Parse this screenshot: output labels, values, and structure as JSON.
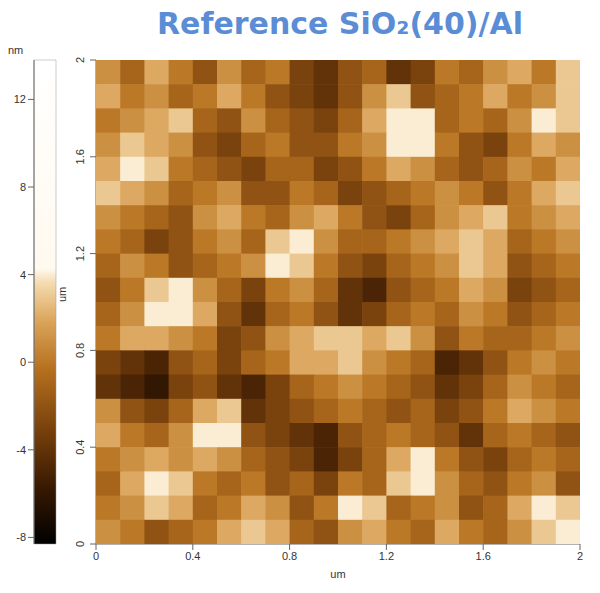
{
  "chart_data": {
    "type": "heatmap",
    "title": "Reference SiO₂(40)/Al",
    "x_label": "um",
    "y_label": "um",
    "x": [
      0.05,
      0.15,
      0.25,
      0.35,
      0.45,
      0.55,
      0.65,
      0.75,
      0.85,
      0.95,
      1.05,
      1.15,
      1.25,
      1.35,
      1.45,
      1.55,
      1.65,
      1.75,
      1.85,
      1.95
    ],
    "y": [
      1.95,
      1.85,
      1.75,
      1.65,
      1.55,
      1.45,
      1.35,
      1.25,
      1.15,
      1.05,
      0.95,
      0.85,
      0.75,
      0.65,
      0.55,
      0.45,
      0.35,
      0.25,
      0.15,
      0.05
    ],
    "z": [
      [
        1,
        -1,
        2,
        0,
        -2,
        1,
        -1,
        0,
        -3,
        -4,
        -2,
        -1,
        -4,
        -3,
        0,
        -1,
        1,
        2,
        0,
        3
      ],
      [
        2,
        0,
        1,
        -1,
        0,
        2,
        0,
        -2,
        -3,
        -4,
        -2,
        1,
        3,
        -2,
        -1,
        0,
        2,
        0,
        1,
        3
      ],
      [
        0,
        1,
        2,
        3,
        -1,
        -2,
        1,
        -1,
        -2,
        -3,
        -1,
        2,
        4,
        4,
        -1,
        0,
        -1,
        1,
        4,
        3
      ],
      [
        1,
        3,
        2,
        1,
        -2,
        -3,
        -1,
        0,
        -2,
        -2,
        0,
        1,
        4,
        4,
        0,
        -2,
        -3,
        0,
        2,
        1
      ],
      [
        2,
        4,
        3,
        0,
        -1,
        -2,
        -3,
        -1,
        -1,
        -3,
        -2,
        0,
        2,
        1,
        -1,
        -2,
        -1,
        1,
        0,
        2
      ],
      [
        3,
        2,
        1,
        -1,
        0,
        1,
        -2,
        -2,
        0,
        -1,
        -3,
        -2,
        -1,
        0,
        1,
        0,
        -2,
        0,
        2,
        3
      ],
      [
        1,
        0,
        -1,
        -2,
        1,
        2,
        0,
        -1,
        1,
        2,
        0,
        -2,
        -3,
        -1,
        1,
        2,
        3,
        0,
        1,
        2
      ],
      [
        0,
        -1,
        -3,
        -2,
        0,
        1,
        -1,
        3,
        4,
        1,
        -1,
        -1,
        0,
        1,
        2,
        3,
        2,
        -1,
        0,
        1
      ],
      [
        -1,
        1,
        0,
        -2,
        -1,
        0,
        1,
        4,
        3,
        0,
        -2,
        -3,
        -1,
        0,
        1,
        3,
        2,
        -2,
        -1,
        0
      ],
      [
        -2,
        0,
        3,
        4,
        1,
        -1,
        -3,
        0,
        1,
        -1,
        -4,
        -5,
        -2,
        -1,
        0,
        2,
        1,
        -3,
        -2,
        -1
      ],
      [
        -1,
        1,
        4,
        4,
        2,
        -2,
        -4,
        -1,
        0,
        -2,
        -4,
        -3,
        -1,
        0,
        -1,
        1,
        0,
        -2,
        -1,
        0
      ],
      [
        0,
        2,
        2,
        1,
        0,
        -3,
        -2,
        1,
        2,
        3,
        3,
        2,
        3,
        1,
        -2,
        0,
        -1,
        -1,
        0,
        1
      ],
      [
        -3,
        -4,
        -5,
        -2,
        -1,
        -3,
        -1,
        0,
        2,
        2,
        3,
        1,
        0,
        -1,
        -5,
        -4,
        -2,
        0,
        1,
        0
      ],
      [
        -4,
        -5,
        -6,
        -3,
        -2,
        -4,
        -5,
        -3,
        -1,
        0,
        1,
        0,
        -1,
        -2,
        -4,
        -3,
        -1,
        1,
        0,
        -1
      ],
      [
        1,
        -2,
        -3,
        -1,
        2,
        3,
        -4,
        -3,
        -2,
        -1,
        0,
        -1,
        -2,
        -1,
        -3,
        -2,
        0,
        2,
        1,
        0
      ],
      [
        2,
        0,
        -1,
        1,
        4,
        4,
        -2,
        -3,
        -4,
        -5,
        -2,
        -1,
        0,
        -1,
        -2,
        -4,
        -1,
        0,
        -1,
        -2
      ],
      [
        0,
        1,
        2,
        1,
        2,
        1,
        -1,
        -2,
        -3,
        -5,
        -3,
        -1,
        2,
        4,
        0,
        -2,
        -3,
        -1,
        0,
        -1
      ],
      [
        -1,
        2,
        4,
        3,
        0,
        -1,
        0,
        -2,
        -1,
        -3,
        0,
        -1,
        3,
        4,
        1,
        -1,
        -2,
        0,
        1,
        -2
      ],
      [
        0,
        1,
        3,
        2,
        -1,
        0,
        2,
        1,
        -2,
        0,
        4,
        3,
        -1,
        0,
        1,
        -2,
        -1,
        2,
        4,
        3
      ],
      [
        1,
        0,
        -2,
        -1,
        0,
        2,
        3,
        2,
        -1,
        -2,
        1,
        2,
        0,
        -1,
        2,
        0,
        -1,
        1,
        3,
        4
      ]
    ],
    "xlim": [
      0,
      2
    ],
    "ylim": [
      0,
      2
    ],
    "xticks": [
      0,
      0.4,
      0.8,
      1.2,
      1.6,
      2
    ],
    "yticks": [
      0,
      0.4,
      0.8,
      1.2,
      1.6,
      2
    ],
    "colorbar": {
      "label": "nm",
      "range": [
        -8.3,
        13.8
      ],
      "ticks": [
        -8,
        -4,
        0,
        4,
        8,
        12
      ]
    }
  }
}
